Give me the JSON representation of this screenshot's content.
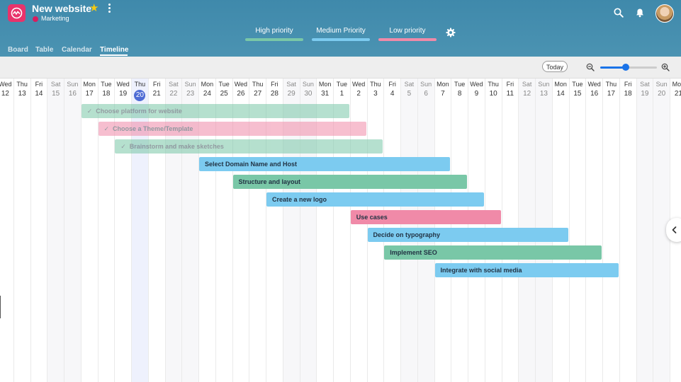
{
  "project": {
    "title": "New website",
    "workspace": "Marketing",
    "workspace_color": "#d81d5f"
  },
  "legend": [
    {
      "label": "High priority",
      "color": "#79c7a7"
    },
    {
      "label": "Medium Priority",
      "color": "#7ccbf0"
    },
    {
      "label": "Low priority",
      "color": "#f08aa8"
    }
  ],
  "tabs": [
    {
      "label": "Board",
      "active": false
    },
    {
      "label": "Table",
      "active": false
    },
    {
      "label": "Calendar",
      "active": false
    },
    {
      "label": "Timeline",
      "active": true
    }
  ],
  "toolbar": {
    "today_label": "Today",
    "zoom_level": 0.45
  },
  "days": [
    {
      "name": "Wed",
      "num": "12",
      "weekend": false,
      "today": false
    },
    {
      "name": "Thu",
      "num": "13",
      "weekend": false,
      "today": false
    },
    {
      "name": "Fri",
      "num": "14",
      "weekend": false,
      "today": false
    },
    {
      "name": "Sat",
      "num": "15",
      "weekend": true,
      "today": false
    },
    {
      "name": "Sun",
      "num": "16",
      "weekend": true,
      "today": false
    },
    {
      "name": "Mon",
      "num": "17",
      "weekend": false,
      "today": false
    },
    {
      "name": "Tue",
      "num": "18",
      "weekend": false,
      "today": false
    },
    {
      "name": "Wed",
      "num": "19",
      "weekend": false,
      "today": false
    },
    {
      "name": "Thu",
      "num": "20",
      "weekend": false,
      "today": true
    },
    {
      "name": "Fri",
      "num": "21",
      "weekend": false,
      "today": false
    },
    {
      "name": "Sat",
      "num": "22",
      "weekend": true,
      "today": false
    },
    {
      "name": "Sun",
      "num": "23",
      "weekend": true,
      "today": false
    },
    {
      "name": "Mon",
      "num": "24",
      "weekend": false,
      "today": false
    },
    {
      "name": "Tue",
      "num": "25",
      "weekend": false,
      "today": false
    },
    {
      "name": "Wed",
      "num": "26",
      "weekend": false,
      "today": false
    },
    {
      "name": "Thu",
      "num": "27",
      "weekend": false,
      "today": false
    },
    {
      "name": "Fri",
      "num": "28",
      "weekend": false,
      "today": false
    },
    {
      "name": "Sat",
      "num": "29",
      "weekend": true,
      "today": false
    },
    {
      "name": "Sun",
      "num": "30",
      "weekend": true,
      "today": false
    },
    {
      "name": "Mon",
      "num": "31",
      "weekend": false,
      "today": false
    },
    {
      "name": "Tue",
      "num": "1",
      "weekend": false,
      "today": false
    },
    {
      "name": "Wed",
      "num": "2",
      "weekend": false,
      "today": false
    },
    {
      "name": "Thu",
      "num": "3",
      "weekend": false,
      "today": false
    },
    {
      "name": "Fri",
      "num": "4",
      "weekend": false,
      "today": false
    },
    {
      "name": "Sat",
      "num": "5",
      "weekend": true,
      "today": false
    },
    {
      "name": "Sun",
      "num": "6",
      "weekend": true,
      "today": false
    },
    {
      "name": "Mon",
      "num": "7",
      "weekend": false,
      "today": false
    },
    {
      "name": "Tue",
      "num": "8",
      "weekend": false,
      "today": false
    },
    {
      "name": "Wed",
      "num": "9",
      "weekend": false,
      "today": false
    },
    {
      "name": "Thu",
      "num": "10",
      "weekend": false,
      "today": false
    },
    {
      "name": "Fri",
      "num": "11",
      "weekend": false,
      "today": false
    },
    {
      "name": "Sat",
      "num": "12",
      "weekend": true,
      "today": false
    },
    {
      "name": "Sun",
      "num": "13",
      "weekend": true,
      "today": false
    },
    {
      "name": "Mon",
      "num": "14",
      "weekend": false,
      "today": false
    },
    {
      "name": "Tue",
      "num": "15",
      "weekend": false,
      "today": false
    },
    {
      "name": "Wed",
      "num": "16",
      "weekend": false,
      "today": false
    },
    {
      "name": "Thu",
      "num": "17",
      "weekend": false,
      "today": false
    },
    {
      "name": "Fri",
      "num": "18",
      "weekend": false,
      "today": false
    },
    {
      "name": "Sat",
      "num": "19",
      "weekend": true,
      "today": false
    },
    {
      "name": "Sun",
      "num": "20",
      "weekend": true,
      "today": false
    },
    {
      "name": "Mon",
      "num": "21",
      "weekend": false,
      "today": false
    }
  ],
  "tasks": [
    {
      "label": "Choose platform for website",
      "start": 5,
      "days": 16,
      "priority": 0,
      "done": true
    },
    {
      "label": "Choose a Theme/Template",
      "start": 6,
      "days": 16,
      "priority": 2,
      "done": true
    },
    {
      "label": "Brainstorm and make sketches",
      "start": 7,
      "days": 16,
      "priority": 0,
      "done": true
    },
    {
      "label": "Select Domain Name and Host",
      "start": 12,
      "days": 15,
      "priority": 1,
      "done": false
    },
    {
      "label": "Structure and layout",
      "start": 14,
      "days": 14,
      "priority": 0,
      "done": false
    },
    {
      "label": "Create a new logo",
      "start": 16,
      "days": 13,
      "priority": 1,
      "done": false
    },
    {
      "label": "Use cases",
      "start": 21,
      "days": 9,
      "priority": 2,
      "done": false
    },
    {
      "label": "Decide on typography",
      "start": 22,
      "days": 12,
      "priority": 1,
      "done": false
    },
    {
      "label": "Implement SEO",
      "start": 23,
      "days": 13,
      "priority": 0,
      "done": false
    },
    {
      "label": "Integrate with social media",
      "start": 26,
      "days": 11,
      "priority": 1,
      "done": false
    }
  ]
}
